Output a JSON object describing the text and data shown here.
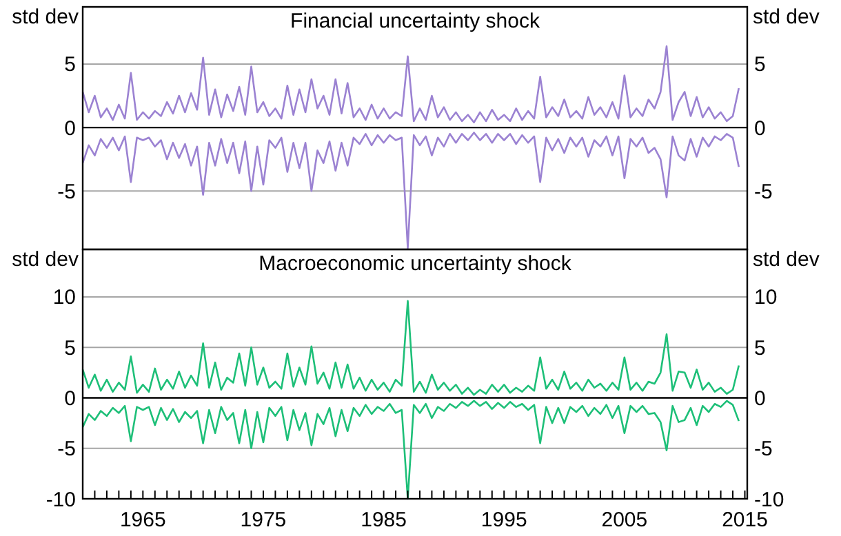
{
  "chart_data": [
    {
      "type": "line",
      "title": "Financial uncertainty shock",
      "ylabel": "std dev",
      "y2label": "std dev",
      "xlim": [
        1960,
        2015.2
      ],
      "ylim": [
        -9.6,
        9.5
      ],
      "yticks": [
        -5,
        0,
        5
      ],
      "y2lim": [
        -9.6,
        9.5
      ],
      "y2ticks": [
        -5,
        0,
        5
      ],
      "grid": "y",
      "tick_labels": "y",
      "x": [
        1960,
        1960.5,
        1961,
        1961.5,
        1962,
        1962.5,
        1963,
        1963.5,
        1964,
        1964.5,
        1965,
        1965.5,
        1966,
        1966.5,
        1967,
        1967.5,
        1968,
        1968.5,
        1969,
        1969.5,
        1970,
        1970.5,
        1971,
        1971.5,
        1972,
        1972.5,
        1973,
        1973.5,
        1974,
        1974.5,
        1975,
        1975.5,
        1976,
        1976.5,
        1977,
        1977.5,
        1978,
        1978.5,
        1979,
        1979.5,
        1980,
        1980.5,
        1981,
        1981.5,
        1982,
        1982.5,
        1983,
        1983.5,
        1984,
        1984.5,
        1985,
        1985.5,
        1986,
        1986.5,
        1987,
        1987.5,
        1988,
        1988.5,
        1989,
        1989.5,
        1990,
        1990.5,
        1991,
        1991.5,
        1992,
        1992.5,
        1993,
        1993.5,
        1994,
        1994.5,
        1995,
        1995.5,
        1996,
        1996.5,
        1997,
        1997.5,
        1998,
        1998.5,
        1999,
        1999.5,
        2000,
        2000.5,
        2001,
        2001.5,
        2002,
        2002.5,
        2003,
        2003.5,
        2004,
        2004.5,
        2005,
        2005.5,
        2006,
        2006.5,
        2007,
        2007.5,
        2008,
        2008.5,
        2009,
        2009.5,
        2010,
        2010.5,
        2011,
        2011.5,
        2012,
        2012.5,
        2013,
        2013.5,
        2014,
        2014.5
      ],
      "series": [
        {
          "color": "#9b82d2",
          "values": [
            2.8,
            1.2,
            2.5,
            0.8,
            1.5,
            0.6,
            1.8,
            0.7,
            4.3,
            0.6,
            1.2,
            0.7,
            1.3,
            0.9,
            2.0,
            1.1,
            2.5,
            1.2,
            2.7,
            1.4,
            5.5,
            1.0,
            3.0,
            0.8,
            2.6,
            1.3,
            3.2,
            1.0,
            4.8,
            1.2,
            2.0,
            0.9,
            1.5,
            0.7,
            3.3,
            1.0,
            3.0,
            1.2,
            3.8,
            1.5,
            2.5,
            1.0,
            3.8,
            1.1,
            3.5,
            0.8,
            1.5,
            0.6,
            1.8,
            0.7,
            1.5,
            0.7,
            1.2,
            0.9,
            5.6,
            0.5,
            1.5,
            0.6,
            2.5,
            0.8,
            1.6,
            0.6,
            1.2,
            0.5,
            1.0,
            0.4,
            1.2,
            0.5,
            1.4,
            0.6,
            1.0,
            0.5,
            1.5,
            0.6,
            1.3,
            0.7,
            4.0,
            0.8,
            1.6,
            0.9,
            2.2,
            0.8,
            1.3,
            0.7,
            2.4,
            1.0,
            1.6,
            0.8,
            2.0,
            0.7,
            4.1,
            0.8,
            1.5,
            0.9,
            2.2,
            1.5,
            2.8,
            6.4,
            0.6,
            2.0,
            2.8,
            0.9,
            2.4,
            0.8,
            1.6,
            0.7,
            1.2,
            0.5,
            0.9,
            3.1
          ]
        },
        {
          "color": "#9b82d2",
          "values": [
            -2.8,
            -1.4,
            -2.2,
            -0.9,
            -1.6,
            -0.8,
            -1.8,
            -0.7,
            -4.3,
            -0.8,
            -1.0,
            -0.8,
            -1.5,
            -1.0,
            -2.5,
            -1.2,
            -2.4,
            -1.3,
            -3.0,
            -1.5,
            -5.3,
            -1.2,
            -3.0,
            -0.9,
            -2.8,
            -1.2,
            -3.6,
            -1.1,
            -5.0,
            -1.5,
            -4.5,
            -1.0,
            -1.6,
            -0.8,
            -3.5,
            -1.2,
            -3.2,
            -1.2,
            -5.0,
            -1.8,
            -2.8,
            -1.1,
            -3.4,
            -1.2,
            -3.0,
            -0.8,
            -1.3,
            -0.5,
            -1.4,
            -0.6,
            -1.2,
            -0.6,
            -1.0,
            -0.8,
            -9.5,
            -0.6,
            -1.4,
            -0.7,
            -2.2,
            -0.8,
            -1.5,
            -0.5,
            -1.2,
            -0.5,
            -1.0,
            -0.4,
            -1.0,
            -0.5,
            -1.2,
            -0.5,
            -1.0,
            -0.5,
            -1.3,
            -0.6,
            -1.2,
            -0.7,
            -4.3,
            -0.8,
            -1.8,
            -0.9,
            -2.0,
            -0.8,
            -1.5,
            -0.8,
            -2.3,
            -1.0,
            -1.5,
            -0.7,
            -2.2,
            -0.7,
            -4.0,
            -0.9,
            -1.5,
            -0.8,
            -2.0,
            -1.6,
            -2.5,
            -5.5,
            -0.7,
            -2.2,
            -2.6,
            -0.9,
            -2.3,
            -0.8,
            -1.5,
            -0.7,
            -1.0,
            -0.5,
            -0.8,
            -3.1
          ]
        }
      ]
    },
    {
      "type": "line",
      "title": "Macroeconomic uncertainty shock",
      "ylabel": "std dev",
      "y2label": "std dev",
      "xlim": [
        1960,
        2015.2
      ],
      "ylim": [
        -10,
        14.7
      ],
      "yticks": [
        -10,
        -5,
        0,
        5,
        10
      ],
      "y2lim": [
        -10,
        14.7
      ],
      "y2ticks": [
        -10,
        -5,
        0,
        5,
        10
      ],
      "grid": "y",
      "xticks": [
        {
          "value": 1961,
          "label": null
        },
        {
          "value": 1962,
          "label": null
        },
        {
          "value": 1963,
          "label": null
        },
        {
          "value": 1964,
          "label": null
        },
        1965,
        {
          "value": 1966,
          "label": null
        },
        {
          "value": 1967,
          "label": null
        },
        {
          "value": 1968,
          "label": null
        },
        {
          "value": 1969,
          "label": null
        },
        {
          "value": 1970,
          "label": null
        },
        {
          "value": 1971,
          "label": null
        },
        {
          "value": 1972,
          "label": null
        },
        {
          "value": 1973,
          "label": null
        },
        {
          "value": 1974,
          "label": null
        },
        1975,
        {
          "value": 1976,
          "label": null
        },
        {
          "value": 1977,
          "label": null
        },
        {
          "value": 1978,
          "label": null
        },
        {
          "value": 1979,
          "label": null
        },
        {
          "value": 1980,
          "label": null
        },
        {
          "value": 1981,
          "label": null
        },
        {
          "value": 1982,
          "label": null
        },
        {
          "value": 1983,
          "label": null
        },
        {
          "value": 1984,
          "label": null
        },
        1985,
        {
          "value": 1986,
          "label": null
        },
        {
          "value": 1987,
          "label": null
        },
        {
          "value": 1988,
          "label": null
        },
        {
          "value": 1989,
          "label": null
        },
        {
          "value": 1990,
          "label": null
        },
        {
          "value": 1991,
          "label": null
        },
        {
          "value": 1992,
          "label": null
        },
        {
          "value": 1993,
          "label": null
        },
        {
          "value": 1994,
          "label": null
        },
        1995,
        {
          "value": 1996,
          "label": null
        },
        {
          "value": 1997,
          "label": null
        },
        {
          "value": 1998,
          "label": null
        },
        {
          "value": 1999,
          "label": null
        },
        {
          "value": 2000,
          "label": null
        },
        {
          "value": 2001,
          "label": null
        },
        {
          "value": 2002,
          "label": null
        },
        {
          "value": 2003,
          "label": null
        },
        {
          "value": 2004,
          "label": null
        },
        2005,
        {
          "value": 2006,
          "label": null
        },
        {
          "value": 2007,
          "label": null
        },
        {
          "value": 2008,
          "label": null
        },
        {
          "value": 2009,
          "label": null
        },
        {
          "value": 2010,
          "label": null
        },
        {
          "value": 2011,
          "label": null
        },
        {
          "value": 2012,
          "label": null
        },
        {
          "value": 2013,
          "label": null
        },
        {
          "value": 2014,
          "label": null
        },
        2015
      ],
      "x": [
        1960,
        1960.5,
        1961,
        1961.5,
        1962,
        1962.5,
        1963,
        1963.5,
        1964,
        1964.5,
        1965,
        1965.5,
        1966,
        1966.5,
        1967,
        1967.5,
        1968,
        1968.5,
        1969,
        1969.5,
        1970,
        1970.5,
        1971,
        1971.5,
        1972,
        1972.5,
        1973,
        1973.5,
        1974,
        1974.5,
        1975,
        1975.5,
        1976,
        1976.5,
        1977,
        1977.5,
        1978,
        1978.5,
        1979,
        1979.5,
        1980,
        1980.5,
        1981,
        1981.5,
        1982,
        1982.5,
        1983,
        1983.5,
        1984,
        1984.5,
        1985,
        1985.5,
        1986,
        1986.5,
        1987,
        1987.5,
        1988,
        1988.5,
        1989,
        1989.5,
        1990,
        1990.5,
        1991,
        1991.5,
        1992,
        1992.5,
        1993,
        1993.5,
        1994,
        1994.5,
        1995,
        1995.5,
        1996,
        1996.5,
        1997,
        1997.5,
        1998,
        1998.5,
        1999,
        1999.5,
        2000,
        2000.5,
        2001,
        2001.5,
        2002,
        2002.5,
        2003,
        2003.5,
        2004,
        2004.5,
        2005,
        2005.5,
        2006,
        2006.5,
        2007,
        2007.5,
        2008,
        2008.5,
        2009,
        2009.5,
        2010,
        2010.5,
        2011,
        2011.5,
        2012,
        2012.5,
        2013,
        2013.5,
        2014,
        2014.5
      ],
      "series": [
        {
          "color": "#1dbf78",
          "values": [
            2.8,
            1.0,
            2.3,
            0.7,
            1.8,
            0.6,
            1.5,
            0.8,
            4.1,
            0.5,
            1.3,
            0.6,
            2.9,
            0.8,
            1.8,
            0.9,
            2.6,
            1.0,
            2.2,
            1.2,
            5.4,
            1.0,
            3.5,
            0.8,
            2.0,
            1.5,
            4.4,
            1.2,
            5.0,
            1.3,
            3.0,
            1.0,
            1.6,
            0.9,
            4.4,
            1.1,
            3.0,
            1.3,
            5.1,
            1.4,
            2.5,
            0.9,
            3.5,
            1.0,
            3.3,
            0.9,
            2.0,
            0.7,
            1.8,
            0.8,
            1.5,
            0.6,
            1.8,
            1.2,
            9.6,
            0.6,
            1.6,
            0.5,
            2.3,
            0.8,
            1.5,
            0.7,
            1.3,
            0.4,
            1.0,
            0.3,
            0.8,
            0.4,
            1.3,
            0.6,
            1.3,
            0.5,
            1.0,
            0.6,
            1.2,
            0.7,
            4.0,
            0.9,
            1.8,
            0.8,
            2.6,
            0.9,
            1.5,
            0.7,
            1.8,
            1.0,
            1.4,
            0.7,
            1.5,
            0.8,
            4.0,
            0.8,
            1.5,
            0.7,
            1.6,
            1.4,
            2.5,
            6.3,
            0.7,
            2.6,
            2.5,
            1.0,
            2.8,
            0.8,
            1.5,
            0.6,
            1.0,
            0.4,
            0.8,
            3.2
          ]
        },
        {
          "color": "#1dbf78",
          "values": [
            -2.9,
            -1.6,
            -2.2,
            -1.3,
            -1.8,
            -1.0,
            -1.5,
            -0.8,
            -4.3,
            -0.9,
            -1.2,
            -0.9,
            -2.7,
            -1.0,
            -2.2,
            -1.1,
            -2.4,
            -1.4,
            -2.0,
            -1.3,
            -4.5,
            -1.2,
            -3.5,
            -0.9,
            -2.2,
            -1.5,
            -4.5,
            -1.2,
            -5.0,
            -1.4,
            -4.4,
            -1.0,
            -1.8,
            -0.9,
            -4.2,
            -1.2,
            -3.2,
            -1.5,
            -4.7,
            -1.6,
            -2.6,
            -1.0,
            -3.8,
            -1.2,
            -3.3,
            -1.0,
            -1.8,
            -0.7,
            -1.6,
            -0.9,
            -1.3,
            -0.6,
            -1.5,
            -1.2,
            -10,
            -0.7,
            -1.5,
            -0.6,
            -2.0,
            -0.9,
            -1.3,
            -0.6,
            -1.0,
            -0.4,
            -0.8,
            -0.3,
            -0.8,
            -0.4,
            -1.1,
            -0.5,
            -1.0,
            -0.4,
            -0.9,
            -0.6,
            -1.2,
            -0.7,
            -4.5,
            -0.9,
            -2.5,
            -1.0,
            -2.5,
            -0.9,
            -1.4,
            -0.8,
            -1.8,
            -1.0,
            -1.6,
            -0.7,
            -2.0,
            -0.8,
            -3.5,
            -0.8,
            -1.4,
            -0.8,
            -1.6,
            -1.5,
            -2.4,
            -5.2,
            -0.8,
            -2.4,
            -2.2,
            -1.0,
            -2.7,
            -0.8,
            -1.4,
            -0.6,
            -0.9,
            -0.3,
            -0.7,
            -2.3
          ]
        }
      ]
    }
  ]
}
